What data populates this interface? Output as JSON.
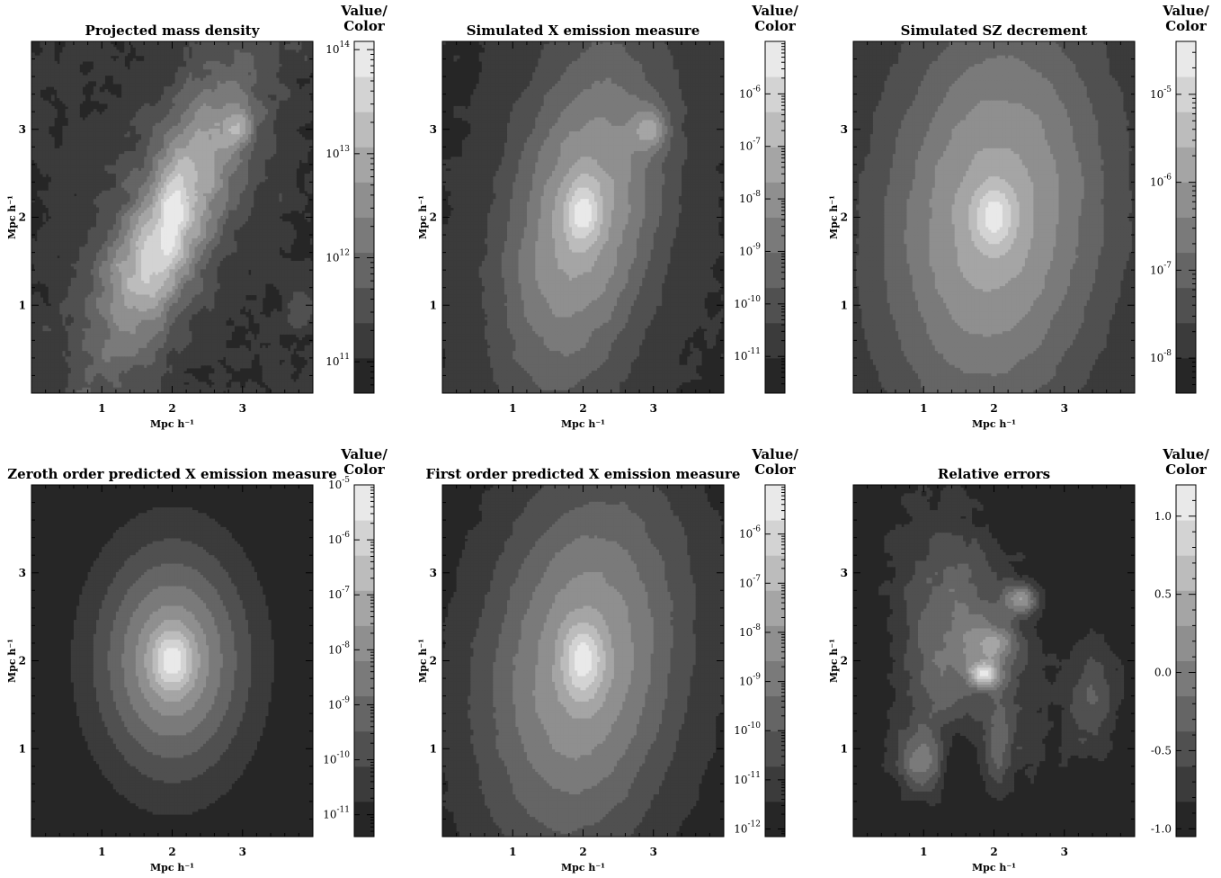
{
  "chart_data": [
    {
      "type": "heatmap",
      "title": "Projected mass density",
      "xlabel": "Mpc h⁻¹",
      "ylabel": "Mpc h⁻¹",
      "x_ticks": [
        "1",
        "2",
        "3"
      ],
      "y_ticks": [
        "1",
        "2",
        "3"
      ],
      "xlim": [
        0,
        4
      ],
      "ylim": [
        0,
        4
      ],
      "colorbar": {
        "title": [
          "Value/",
          "Color"
        ],
        "scale": "log",
        "min": 50000000000.0,
        "max": 120000000000000.0,
        "ticks": [
          {
            "base": "10",
            "exp": "14",
            "value": 100000000000000.0
          },
          {
            "base": "10",
            "exp": "13",
            "value": 10000000000000.0
          },
          {
            "base": "10",
            "exp": "12",
            "value": 1000000000000.0
          },
          {
            "base": "10",
            "exp": "11",
            "value": 100000000000.0
          }
        ]
      },
      "field": {
        "background": 0.12,
        "peaks": [
          {
            "x": 2.0,
            "y": 2.0,
            "sx": 0.45,
            "sy": 1.35,
            "rot": -30,
            "amp": 0.66
          },
          {
            "x": 2.0,
            "y": 2.05,
            "sx": 0.13,
            "sy": 0.35,
            "rot": -10,
            "amp": 0.24
          },
          {
            "x": 2.95,
            "y": 3.0,
            "sx": 0.14,
            "sy": 0.14,
            "rot": 0,
            "amp": 0.3
          },
          {
            "x": 1.6,
            "y": 1.4,
            "sx": 0.35,
            "sy": 0.3,
            "rot": 0,
            "amp": 0.12
          },
          {
            "x": 3.8,
            "y": 1.0,
            "sx": 0.12,
            "sy": 0.18,
            "rot": 0,
            "amp": 0.18
          }
        ],
        "noise": 0.05
      }
    },
    {
      "type": "heatmap",
      "title": "Simulated X emission measure",
      "xlabel": "Mpc h⁻¹",
      "ylabel": "Mpc h⁻¹",
      "x_ticks": [
        "1",
        "2",
        "3"
      ],
      "y_ticks": [
        "1",
        "2",
        "3"
      ],
      "xlim": [
        0,
        4
      ],
      "ylim": [
        0,
        4
      ],
      "colorbar": {
        "title": [
          "Value/",
          "Color"
        ],
        "scale": "log",
        "min": 2e-12,
        "max": 1e-05,
        "ticks": [
          {
            "base": "10",
            "exp": "-6",
            "value": 1e-06
          },
          {
            "base": "10",
            "exp": "-7",
            "value": 1e-07
          },
          {
            "base": "10",
            "exp": "-8",
            "value": 1e-08
          },
          {
            "base": "10",
            "exp": "-9",
            "value": 1e-09
          },
          {
            "base": "10",
            "exp": "-10",
            "value": 1e-10
          },
          {
            "base": "10",
            "exp": "-11",
            "value": 1e-11
          }
        ]
      },
      "field": {
        "background": 0.08,
        "peaks": [
          {
            "x": 2.0,
            "y": 2.0,
            "sx": 0.75,
            "sy": 1.45,
            "rot": -15,
            "amp": 0.58
          },
          {
            "x": 2.0,
            "y": 2.05,
            "sx": 0.17,
            "sy": 0.25,
            "rot": 0,
            "amp": 0.32
          },
          {
            "x": 2.95,
            "y": 3.0,
            "sx": 0.17,
            "sy": 0.17,
            "rot": 0,
            "amp": 0.32
          }
        ],
        "noise": 0.015
      }
    },
    {
      "type": "heatmap",
      "title": "Simulated SZ decrement",
      "xlabel": "Mpc h⁻¹",
      "ylabel": "Mpc h⁻¹",
      "x_ticks": [
        "1",
        "2",
        "3"
      ],
      "y_ticks": [
        "1",
        "2",
        "3"
      ],
      "xlim": [
        0,
        4
      ],
      "ylim": [
        0,
        4
      ],
      "colorbar": {
        "title": [
          "Value/",
          "Color"
        ],
        "scale": "log",
        "min": 4e-09,
        "max": 4e-05,
        "ticks": [
          {
            "base": "10",
            "exp": "-5",
            "value": 1e-05
          },
          {
            "base": "10",
            "exp": "-6",
            "value": 1e-06
          },
          {
            "base": "10",
            "exp": "-7",
            "value": 1e-07
          },
          {
            "base": "10",
            "exp": "-8",
            "value": 1e-08
          }
        ]
      },
      "field": {
        "background": 0.05,
        "peaks": [
          {
            "x": 2.0,
            "y": 2.0,
            "sx": 1.15,
            "sy": 1.7,
            "rot": -8,
            "amp": 0.62
          },
          {
            "x": 2.0,
            "y": 2.0,
            "sx": 0.2,
            "sy": 0.25,
            "rot": 0,
            "amp": 0.3
          }
        ],
        "noise": 0.008
      }
    },
    {
      "type": "heatmap",
      "title": "Zeroth order predicted X emission measure",
      "xlabel": "Mpc h⁻¹",
      "ylabel": "Mpc h⁻¹",
      "x_ticks": [
        "1",
        "2",
        "3"
      ],
      "y_ticks": [
        "1",
        "2",
        "3"
      ],
      "xlim": [
        0,
        4
      ],
      "ylim": [
        0,
        4
      ],
      "colorbar": {
        "title": [
          "Value/",
          "Color"
        ],
        "scale": "log",
        "min": 4e-12,
        "max": 1e-05,
        "ticks": [
          {
            "base": "10",
            "exp": "-5",
            "value": 1e-05
          },
          {
            "base": "10",
            "exp": "-6",
            "value": 1e-06
          },
          {
            "base": "10",
            "exp": "-7",
            "value": 1e-07
          },
          {
            "base": "10",
            "exp": "-8",
            "value": 1e-08
          },
          {
            "base": "10",
            "exp": "-9",
            "value": 1e-09
          },
          {
            "base": "10",
            "exp": "-10",
            "value": 1e-10
          },
          {
            "base": "10",
            "exp": "-11",
            "value": 1e-11
          }
        ]
      },
      "field": {
        "background": 0.0,
        "peaks": [
          {
            "x": 2.0,
            "y": 2.0,
            "sx": 0.75,
            "sy": 0.92,
            "rot": 0,
            "amp": 0.62
          },
          {
            "x": 2.0,
            "y": 2.0,
            "sx": 0.2,
            "sy": 0.24,
            "rot": 0,
            "amp": 0.36
          }
        ],
        "noise": 0
      }
    },
    {
      "type": "heatmap",
      "title": "First order predicted X emission measure",
      "xlabel": "Mpc h⁻¹",
      "ylabel": "Mpc h⁻¹",
      "x_ticks": [
        "1",
        "2",
        "3"
      ],
      "y_ticks": [
        "1",
        "2",
        "3"
      ],
      "xlim": [
        0,
        4
      ],
      "ylim": [
        0,
        4
      ],
      "colorbar": {
        "title": [
          "Value/",
          "Color"
        ],
        "scale": "log",
        "min": 7e-13,
        "max": 1e-05,
        "ticks": [
          {
            "base": "10",
            "exp": "-6",
            "value": 1e-06
          },
          {
            "base": "10",
            "exp": "-7",
            "value": 1e-07
          },
          {
            "base": "10",
            "exp": "-8",
            "value": 1e-08
          },
          {
            "base": "10",
            "exp": "-9",
            "value": 1e-09
          },
          {
            "base": "10",
            "exp": "-10",
            "value": 1e-10
          },
          {
            "base": "10",
            "exp": "-11",
            "value": 1e-11
          },
          {
            "base": "10",
            "exp": "-12",
            "value": 1e-12
          }
        ]
      },
      "field": {
        "background": 0.02,
        "peaks": [
          {
            "x": 2.0,
            "y": 1.95,
            "sx": 1.0,
            "sy": 1.55,
            "rot": -12,
            "amp": 0.6
          },
          {
            "x": 2.0,
            "y": 2.0,
            "sx": 0.2,
            "sy": 0.3,
            "rot": 0,
            "amp": 0.34
          }
        ],
        "noise": 0.01
      }
    },
    {
      "type": "heatmap",
      "title": "Relative errors",
      "xlabel": "Mpc h⁻¹",
      "ylabel": "Mpc h⁻¹",
      "x_ticks": [
        "1",
        "2",
        "3"
      ],
      "y_ticks": [
        "1",
        "2",
        "3"
      ],
      "xlim": [
        0,
        4
      ],
      "ylim": [
        0,
        4
      ],
      "colorbar": {
        "title": [
          "Value/",
          "Color"
        ],
        "scale": "linear",
        "min": -1.05,
        "max": 1.2,
        "ticks": [
          {
            "label": "1.0",
            "value": 1.0
          },
          {
            "label": "0.5",
            "value": 0.5
          },
          {
            "label": "0.0",
            "value": 0.0
          },
          {
            "label": "-0.5",
            "value": -0.5
          },
          {
            "label": "-1.0",
            "value": -1.0
          }
        ]
      },
      "field": {
        "background": 0.0,
        "peaks": [
          {
            "x": 1.7,
            "y": 2.3,
            "sx": 0.55,
            "sy": 1.1,
            "rot": 25,
            "amp": 0.35
          },
          {
            "x": 1.1,
            "y": 1.7,
            "sx": 0.45,
            "sy": 0.8,
            "rot": 0,
            "amp": 0.2
          },
          {
            "x": 2.4,
            "y": 2.7,
            "sx": 0.18,
            "sy": 0.12,
            "rot": 0,
            "amp": 0.45
          },
          {
            "x": 1.85,
            "y": 1.85,
            "sx": 0.14,
            "sy": 0.1,
            "rot": 0,
            "amp": 0.55
          },
          {
            "x": 2.0,
            "y": 2.2,
            "sx": 0.2,
            "sy": 0.15,
            "rot": 0,
            "amp": 0.3
          },
          {
            "x": 1.0,
            "y": 0.85,
            "sx": 0.25,
            "sy": 0.25,
            "rot": 0,
            "amp": 0.35
          },
          {
            "x": 3.4,
            "y": 1.6,
            "sx": 0.25,
            "sy": 0.45,
            "rot": 0,
            "amp": 0.3
          },
          {
            "x": 2.05,
            "y": 1.1,
            "sx": 0.12,
            "sy": 0.4,
            "rot": 0,
            "amp": 0.2
          }
        ],
        "holes": [
          {
            "x": 1.45,
            "y": 0.9,
            "sx": 0.2,
            "sy": 0.3,
            "amp": 0.25
          },
          {
            "x": 1.9,
            "y": 1.45,
            "sx": 0.15,
            "sy": 0.15,
            "amp": 0.15
          }
        ],
        "noise": 0.04
      }
    }
  ]
}
